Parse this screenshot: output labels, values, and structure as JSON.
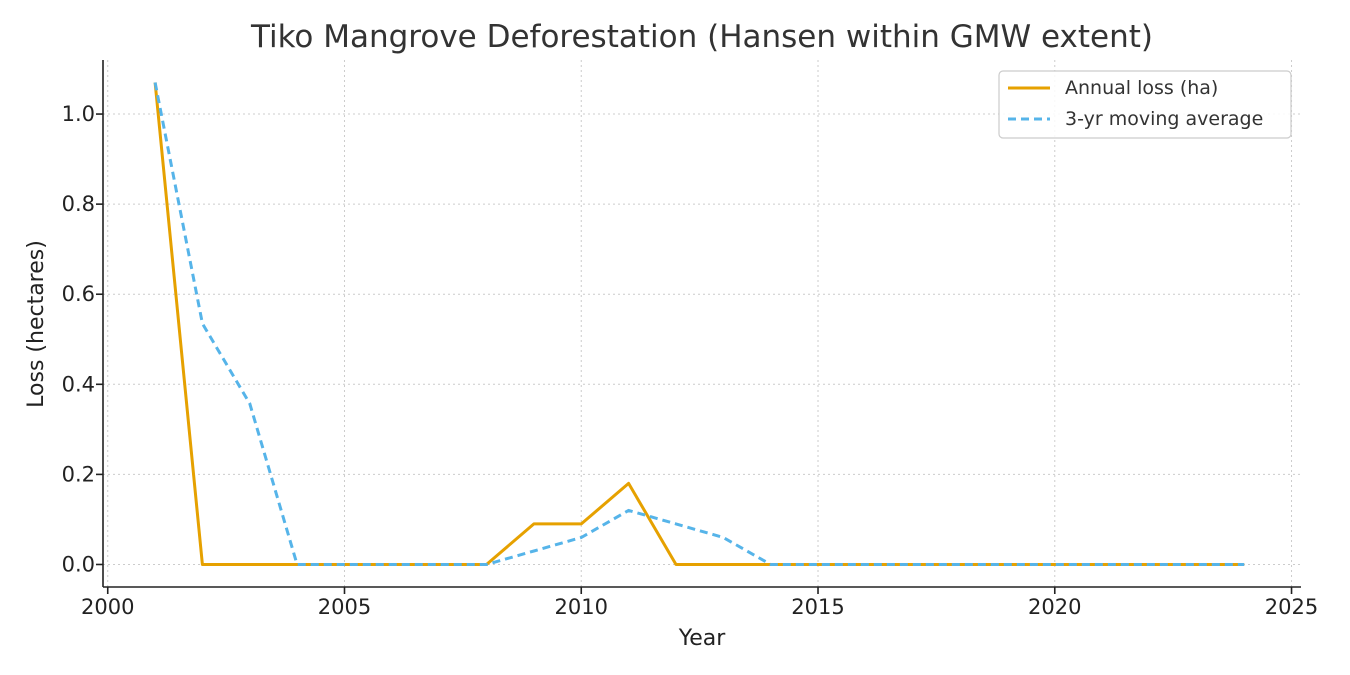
{
  "chart_data": {
    "type": "line",
    "title": "Tiko Mangrove Deforestation (Hansen within GMW extent)",
    "xlabel": "Year",
    "ylabel": "Loss (hectares)",
    "xlim": [
      1999.9,
      2025.2
    ],
    "ylim": [
      -0.05,
      1.12
    ],
    "xticks": [
      2000,
      2005,
      2010,
      2015,
      2020,
      2025
    ],
    "yticks": [
      0.0,
      0.2,
      0.4,
      0.6,
      0.8,
      1.0
    ],
    "grid": true,
    "legend_position": "top-right",
    "x": [
      2001,
      2002,
      2003,
      2004,
      2005,
      2006,
      2007,
      2008,
      2009,
      2010,
      2011,
      2012,
      2013,
      2014,
      2015,
      2016,
      2017,
      2018,
      2019,
      2020,
      2021,
      2022,
      2023,
      2024
    ],
    "series": [
      {
        "name": "Annual loss (ha)",
        "color": "#E6A100",
        "style": "solid",
        "values": [
          1.07,
          0.0,
          0.0,
          0.0,
          0.0,
          0.0,
          0.0,
          0.0,
          0.09,
          0.09,
          0.18,
          0.0,
          0.0,
          0.0,
          0.0,
          0.0,
          0.0,
          0.0,
          0.0,
          0.0,
          0.0,
          0.0,
          0.0,
          0.0
        ]
      },
      {
        "name": "3-yr moving average",
        "color": "#56B4E9",
        "style": "dashed",
        "values": [
          1.07,
          0.535,
          0.357,
          0.0,
          0.0,
          0.0,
          0.0,
          0.0,
          0.03,
          0.06,
          0.12,
          0.09,
          0.06,
          0.0,
          0.0,
          0.0,
          0.0,
          0.0,
          0.0,
          0.0,
          0.0,
          0.0,
          0.0,
          0.0
        ]
      }
    ]
  }
}
